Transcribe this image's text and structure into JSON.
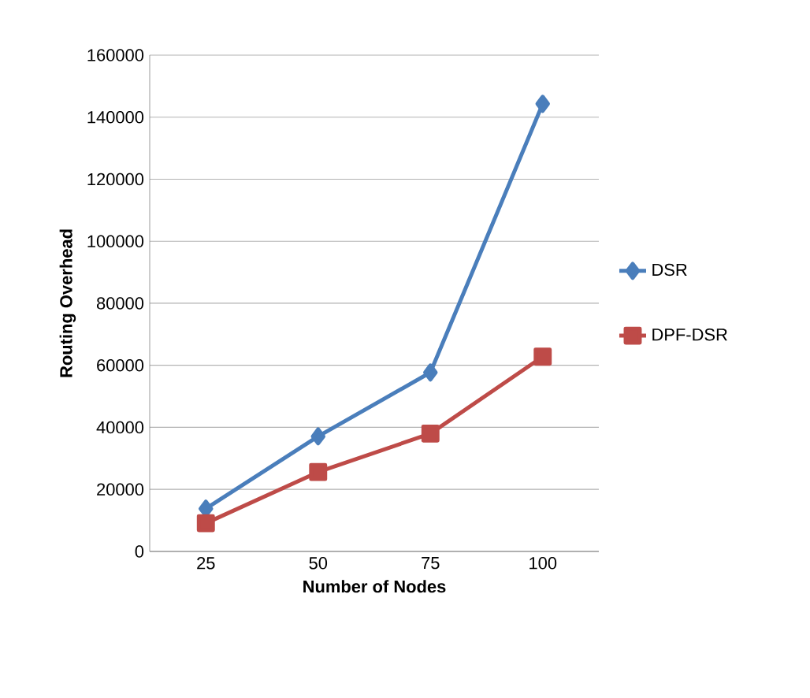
{
  "chart_data": {
    "type": "line",
    "xlabel": "Number of Nodes",
    "ylabel": "Routing Overhead",
    "categories": [
      "25",
      "50",
      "75",
      "100"
    ],
    "series": [
      {
        "name": "DSR",
        "color": "#4a7ebb",
        "marker": "diamond",
        "values": [
          13800,
          37100,
          57700,
          144300
        ]
      },
      {
        "name": "DPF-DSR",
        "color": "#be4b48",
        "marker": "square",
        "values": [
          9100,
          25600,
          38000,
          62800
        ]
      }
    ],
    "ylim": [
      0,
      160000
    ],
    "yticks": [
      0,
      20000,
      40000,
      60000,
      80000,
      100000,
      120000,
      140000,
      160000
    ],
    "grid": "y",
    "legend": "right"
  }
}
